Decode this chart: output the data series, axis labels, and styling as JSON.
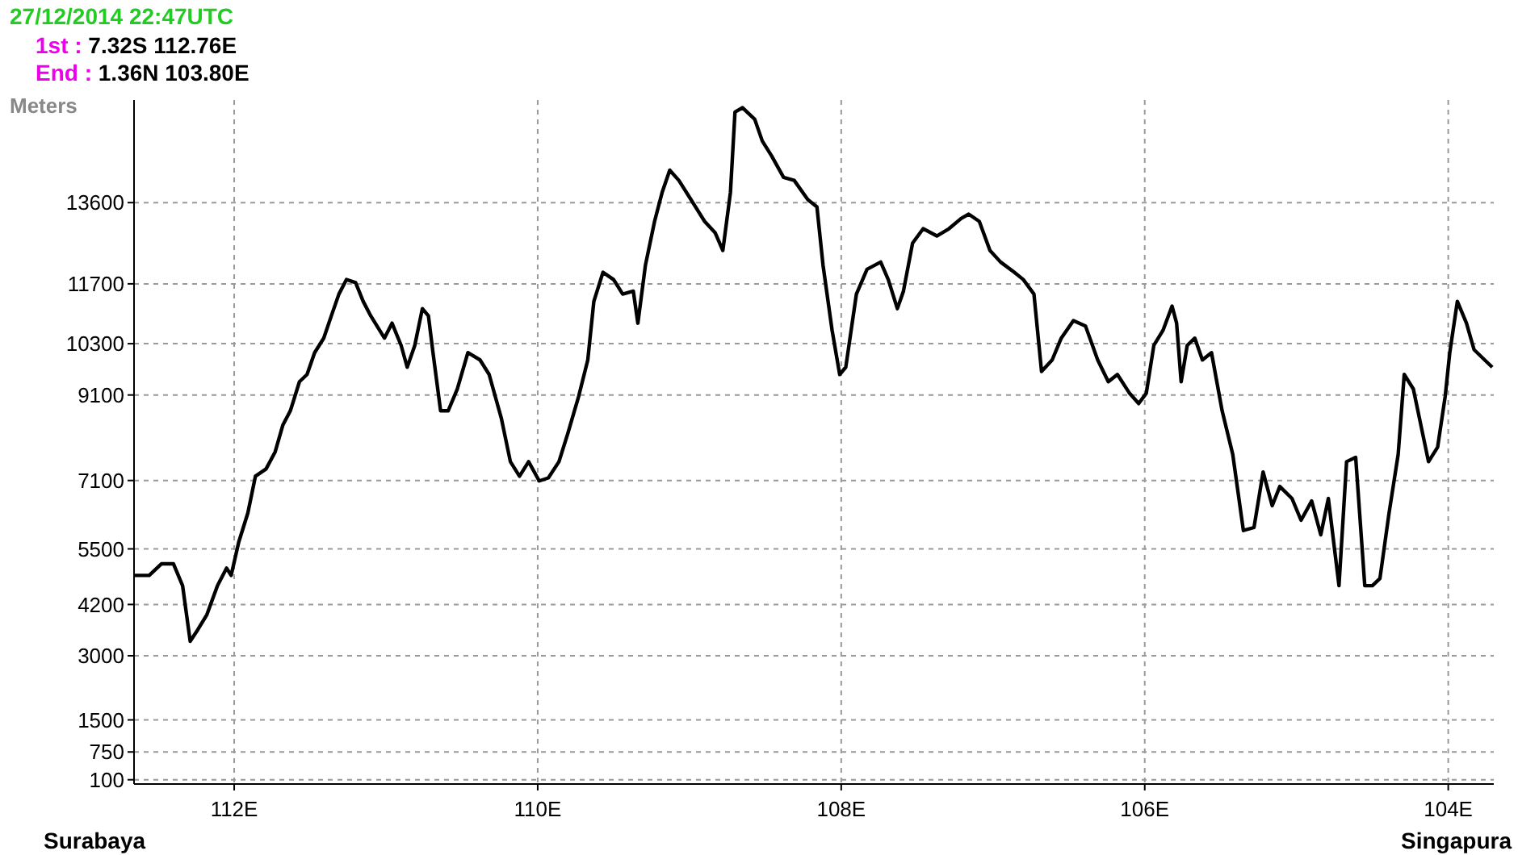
{
  "chart_data": {
    "type": "line",
    "title": "27/12/2014 22:47UTC",
    "ylabel": "Meters",
    "annotations": [
      "1st : 7.32S 112.76E",
      "End : 1.36N 103.80E",
      "Surabaya",
      "Singapura"
    ],
    "x": [
      112.66,
      112.56,
      112.48,
      112.4,
      112.34,
      112.29,
      112.24,
      112.18,
      112.11,
      112.05,
      112.02,
      111.97,
      111.91,
      111.86,
      111.79,
      111.73,
      111.68,
      111.63,
      111.57,
      111.52,
      111.47,
      111.41,
      111.36,
      111.31,
      111.26,
      111.2,
      111.15,
      111.1,
      111.01,
      110.96,
      110.9,
      110.86,
      110.81,
      110.76,
      110.72,
      110.69,
      110.64,
      110.59,
      110.53,
      110.46,
      110.38,
      110.32,
      110.24,
      110.18,
      110.12,
      110.06,
      109.99,
      109.93,
      109.86,
      109.8,
      109.73,
      109.67,
      109.63,
      109.57,
      109.5,
      109.44,
      109.37,
      109.34,
      109.29,
      109.23,
      109.18,
      109.13,
      109.07,
      108.99,
      108.9,
      108.83,
      108.78,
      108.73,
      108.7,
      108.65,
      108.57,
      108.52,
      108.46,
      108.38,
      108.31,
      108.22,
      108.16,
      108.12,
      108.06,
      108.01,
      107.97,
      107.9,
      107.83,
      107.74,
      107.69,
      107.63,
      107.59,
      107.53,
      107.46,
      107.37,
      107.29,
      107.21,
      107.16,
      107.09,
      107.02,
      106.95,
      106.86,
      106.8,
      106.73,
      106.68,
      106.61,
      106.55,
      106.47,
      106.39,
      106.31,
      106.24,
      106.18,
      106.1,
      106.04,
      105.99,
      105.94,
      105.88,
      105.82,
      105.79,
      105.76,
      105.72,
      105.67,
      105.62,
      105.56,
      105.49,
      105.42,
      105.35,
      105.28,
      105.22,
      105.16,
      105.11,
      105.03,
      104.97,
      104.9,
      104.84,
      104.79,
      104.72,
      104.67,
      104.61,
      104.55,
      104.5,
      104.45,
      104.39,
      104.33,
      104.29,
      104.23,
      104.18,
      104.13,
      104.07,
      104.02,
      103.99,
      103.94,
      103.88,
      103.83,
      103.76,
      103.71
    ],
    "series": [
      {
        "color": "#000000",
        "values": [
          4880,
          4880,
          5150,
          5150,
          4640,
          3340,
          3610,
          3960,
          4640,
          5050,
          4880,
          5660,
          6340,
          7200,
          7370,
          7770,
          8390,
          8730,
          9410,
          9580,
          10090,
          10430,
          10950,
          11460,
          11800,
          11730,
          11290,
          10950,
          10430,
          10780,
          10260,
          9750,
          10260,
          11120,
          10950,
          10090,
          8730,
          8730,
          9240,
          10090,
          9920,
          9580,
          8560,
          7540,
          7200,
          7540,
          7090,
          7160,
          7540,
          8220,
          9070,
          9920,
          11290,
          11970,
          11800,
          11460,
          11530,
          10780,
          12140,
          13160,
          13840,
          14360,
          14120,
          13670,
          13160,
          12890,
          12480,
          13840,
          15720,
          15820,
          15550,
          15040,
          14700,
          14190,
          14120,
          13670,
          13500,
          12140,
          10610,
          9580,
          9750,
          11460,
          12040,
          12210,
          11800,
          11120,
          11530,
          12650,
          12990,
          12820,
          12990,
          13230,
          13330,
          13160,
          12480,
          12210,
          11970,
          11800,
          11460,
          9650,
          9920,
          10430,
          10840,
          10710,
          9920,
          9410,
          9580,
          9140,
          8900,
          9140,
          10260,
          10610,
          11180,
          10780,
          9410,
          10260,
          10430,
          9920,
          10090,
          8730,
          7710,
          5930,
          6000,
          7300,
          6510,
          6960,
          6680,
          6170,
          6620,
          5830,
          6680,
          4640,
          7540,
          7640,
          4640,
          4640,
          4810,
          6340,
          7710,
          9580,
          9240,
          8390,
          7540,
          7880,
          9070,
          10090,
          11290,
          10780,
          10160,
          9920,
          9750
        ]
      }
    ],
    "xlim": [
      112.66,
      103.7
    ],
    "xticks": [
      {
        "value": 112,
        "label": "112E"
      },
      {
        "value": 110,
        "label": "110E"
      },
      {
        "value": 108,
        "label": "108E"
      },
      {
        "value": 106,
        "label": "106E"
      },
      {
        "value": 104,
        "label": "104E"
      }
    ],
    "ylim": [
      0,
      16000
    ],
    "yticks": [
      13600,
      10300,
      11700,
      9100,
      7100,
      5500,
      4200,
      3000,
      1500,
      750,
      100
    ],
    "grid": true,
    "marker": "none",
    "line_style": "solid"
  }
}
